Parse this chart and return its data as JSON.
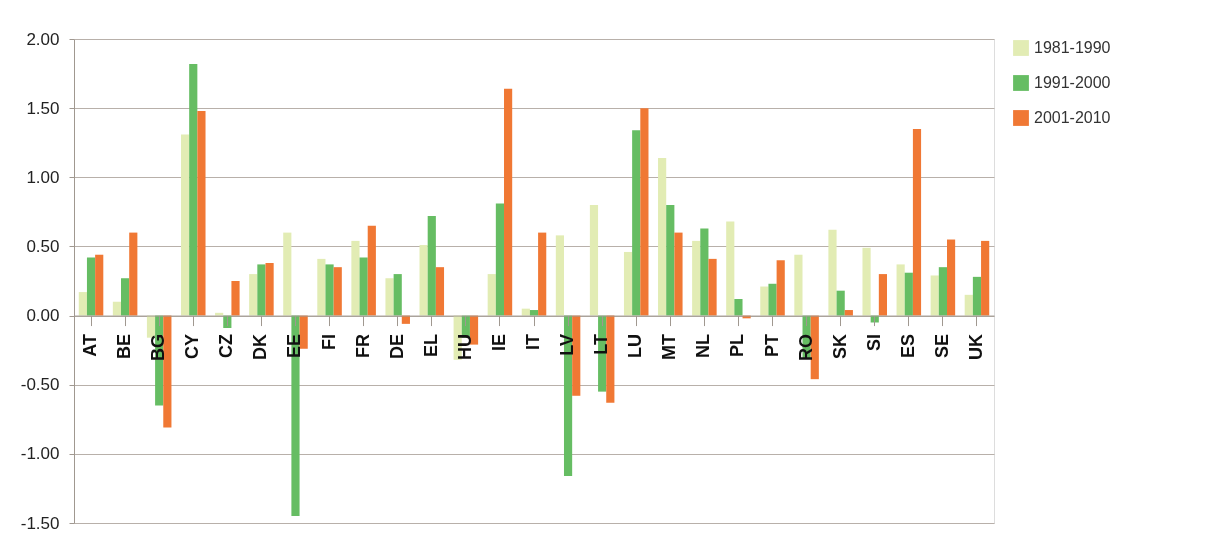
{
  "chart_data": {
    "type": "bar",
    "categories": [
      "AT",
      "BE",
      "BG",
      "CY",
      "CZ",
      "DK",
      "EE",
      "FI",
      "FR",
      "DE",
      "EL",
      "HU",
      "IE",
      "IT",
      "LV",
      "LT",
      "LU",
      "MT",
      "NL",
      "PL",
      "PT",
      "RO",
      "SK",
      "SI",
      "ES",
      "SE",
      "UK"
    ],
    "series": [
      {
        "name": "1981-1990",
        "color": "#e2ecb4",
        "values": [
          0.17,
          0.1,
          -0.16,
          1.31,
          0.02,
          0.3,
          0.6,
          0.41,
          0.54,
          0.27,
          0.51,
          -0.32,
          0.3,
          0.05,
          0.58,
          0.8,
          0.46,
          1.14,
          0.54,
          0.68,
          0.21,
          0.44,
          0.62,
          0.49,
          0.37,
          0.29,
          0.15
        ]
      },
      {
        "name": "1991-2000",
        "color": "#66bd63",
        "values": [
          0.42,
          0.27,
          -0.65,
          1.82,
          -0.09,
          0.37,
          -1.45,
          0.37,
          0.42,
          0.3,
          0.72,
          -0.16,
          0.81,
          0.04,
          -1.16,
          -0.55,
          1.34,
          0.8,
          0.63,
          0.12,
          0.23,
          -0.31,
          0.18,
          -0.05,
          0.31,
          0.35,
          0.28
        ]
      },
      {
        "name": "2001-2010",
        "color": "#f07834",
        "values": [
          0.44,
          0.6,
          -0.81,
          1.48,
          0.25,
          0.38,
          -0.24,
          0.35,
          0.65,
          -0.06,
          0.35,
          -0.21,
          1.64,
          0.6,
          -0.58,
          -0.63,
          1.5,
          0.6,
          0.41,
          -0.02,
          0.4,
          -0.46,
          0.04,
          0.3,
          1.35,
          0.55,
          0.54
        ]
      }
    ],
    "ylim": [
      -1.5,
      2.0
    ],
    "yticks": [
      {
        "value": -1.5,
        "label": "-1.50"
      },
      {
        "value": -1.0,
        "label": "-1.00"
      },
      {
        "value": -0.5,
        "label": "-0.50"
      },
      {
        "value": 0,
        "label": "0.00"
      },
      {
        "value": 0.5,
        "label": "0.50"
      },
      {
        "value": 1.0,
        "label": "1.00"
      },
      {
        "value": 1.5,
        "label": "1.50"
      },
      {
        "value": 2.0,
        "label": "2.00"
      }
    ],
    "grid": "y",
    "legend": "right"
  }
}
